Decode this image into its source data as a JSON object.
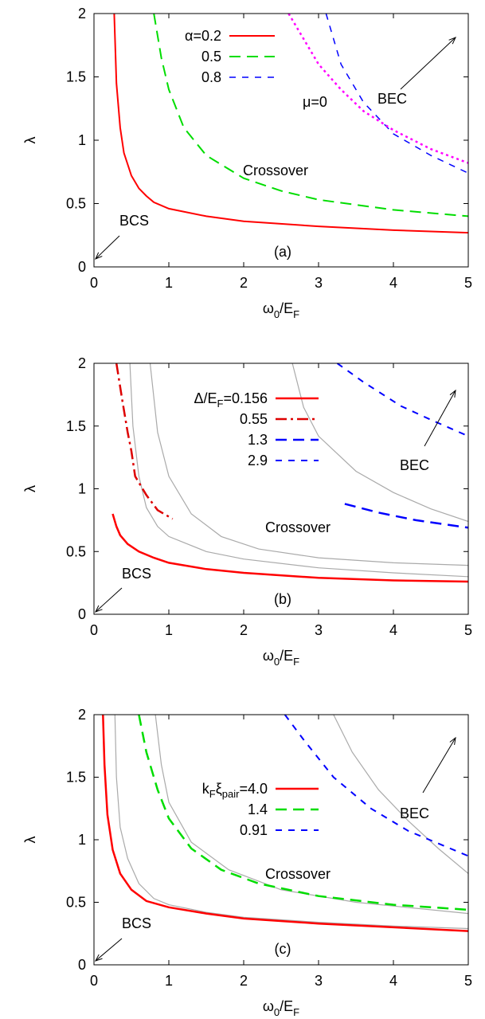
{
  "chart_data": [
    {
      "type": "line",
      "panel_label": "(a)",
      "xlabel": {
        "main": "ω",
        "sub1": "0",
        "mid": "/E",
        "sub2": "F"
      },
      "ylabel": "λ",
      "xlim": [
        0,
        5
      ],
      "ylim": [
        0,
        2
      ],
      "x_ticks": [
        "0",
        "1",
        "2",
        "3",
        "4",
        "5"
      ],
      "y_ticks": [
        "0",
        "0.5",
        "1",
        "1.5",
        "2"
      ],
      "annotations": {
        "bcs": "BCS",
        "crossover": "Crossover",
        "bec": "BEC",
        "mu0": "μ=0"
      },
      "series": [
        {
          "name": "α=0.2",
          "legend_parts": [
            {
              "t": "α=0.2"
            }
          ],
          "color": "#ff0000",
          "dash": "solid",
          "width": 2,
          "points": [
            [
              0.27,
              2.0
            ],
            [
              0.3,
              1.45
            ],
            [
              0.35,
              1.1
            ],
            [
              0.4,
              0.9
            ],
            [
              0.5,
              0.72
            ],
            [
              0.6,
              0.62
            ],
            [
              0.7,
              0.56
            ],
            [
              0.8,
              0.51
            ],
            [
              1.0,
              0.46
            ],
            [
              1.5,
              0.4
            ],
            [
              2.0,
              0.36
            ],
            [
              3.0,
              0.32
            ],
            [
              4.0,
              0.29
            ],
            [
              5.0,
              0.27
            ]
          ]
        },
        {
          "name": "0.5",
          "legend_parts": [
            {
              "t": "0.5"
            }
          ],
          "color": "#00dd00",
          "dash": "long",
          "width": 2,
          "points": [
            [
              0.8,
              2.0
            ],
            [
              0.9,
              1.65
            ],
            [
              1.0,
              1.4
            ],
            [
              1.2,
              1.1
            ],
            [
              1.5,
              0.88
            ],
            [
              2.0,
              0.7
            ],
            [
              2.5,
              0.6
            ],
            [
              3.0,
              0.53
            ],
            [
              4.0,
              0.45
            ],
            [
              5.0,
              0.4
            ]
          ]
        },
        {
          "name": "0.8",
          "legend_parts": [
            {
              "t": "0.8"
            }
          ],
          "color": "#0000ff",
          "dash": "short",
          "width": 1.5,
          "points": [
            [
              3.1,
              2.0
            ],
            [
              3.3,
              1.6
            ],
            [
              3.6,
              1.3
            ],
            [
              4.0,
              1.05
            ],
            [
              4.5,
              0.88
            ],
            [
              5.0,
              0.74
            ]
          ]
        }
      ],
      "extra_series": [
        {
          "name": "μ=0",
          "color": "#ff00ff",
          "dash": "dot",
          "width": 2.5,
          "points": [
            [
              2.6,
              2.0
            ],
            [
              2.8,
              1.8
            ],
            [
              3.0,
              1.6
            ],
            [
              3.3,
              1.4
            ],
            [
              3.6,
              1.23
            ],
            [
              4.0,
              1.08
            ],
            [
              4.5,
              0.93
            ],
            [
              5.0,
              0.82
            ]
          ]
        }
      ],
      "gray_curves": []
    },
    {
      "type": "line",
      "panel_label": "(b)",
      "xlabel": {
        "main": "ω",
        "sub1": "0",
        "mid": "/E",
        "sub2": "F"
      },
      "ylabel": "λ",
      "xlim": [
        0,
        5
      ],
      "ylim": [
        0,
        2
      ],
      "x_ticks": [
        "0",
        "1",
        "2",
        "3",
        "4",
        "5"
      ],
      "y_ticks": [
        "0",
        "0.5",
        "1",
        "1.5",
        "2"
      ],
      "annotations": {
        "bcs": "BCS",
        "crossover": "Crossover",
        "bec": "BEC",
        "mu0": ""
      },
      "series": [
        {
          "name": "Δ/E_F=0.156",
          "legend_parts": [
            {
              "t": "Δ/E"
            },
            {
              "t": "F",
              "sub": true
            },
            {
              "t": "=0.156"
            }
          ],
          "color": "#ff0000",
          "dash": "solid",
          "width": 2.5,
          "points": [
            [
              0.25,
              0.8
            ],
            [
              0.3,
              0.7
            ],
            [
              0.35,
              0.63
            ],
            [
              0.45,
              0.56
            ],
            [
              0.6,
              0.5
            ],
            [
              0.8,
              0.45
            ],
            [
              1.0,
              0.41
            ],
            [
              1.5,
              0.36
            ],
            [
              2.0,
              0.33
            ],
            [
              3.0,
              0.29
            ],
            [
              4.0,
              0.27
            ],
            [
              5.0,
              0.26
            ]
          ]
        },
        {
          "name": "0.55",
          "legend_parts": [
            {
              "t": "0.55"
            }
          ],
          "color": "#dd0000",
          "dash": "dashdot",
          "width": 2.5,
          "points": [
            [
              0.3,
              2.0
            ],
            [
              0.38,
              1.7
            ],
            [
              0.45,
              1.45
            ],
            [
              0.5,
              1.3
            ],
            [
              0.55,
              1.1
            ],
            [
              0.7,
              0.95
            ],
            [
              0.85,
              0.83
            ],
            [
              1.05,
              0.76
            ]
          ]
        },
        {
          "name": "1.3",
          "legend_parts": [
            {
              "t": "1.3"
            }
          ],
          "color": "#0000ff",
          "dash": "long",
          "width": 2.5,
          "points": [
            [
              3.35,
              0.88
            ],
            [
              3.8,
              0.81
            ],
            [
              4.3,
              0.75
            ],
            [
              5.0,
              0.69
            ]
          ]
        },
        {
          "name": "2.9",
          "legend_parts": [
            {
              "t": "2.9"
            }
          ],
          "color": "#0000ff",
          "dash": "short",
          "width": 2,
          "points": [
            [
              3.25,
              2.0
            ],
            [
              3.6,
              1.85
            ],
            [
              4.1,
              1.66
            ],
            [
              4.5,
              1.55
            ],
            [
              5.0,
              1.42
            ]
          ]
        }
      ],
      "extra_series": [],
      "gray_curves": [
        {
          "points": [
            [
              0.48,
              2.0
            ],
            [
              0.52,
              1.5
            ],
            [
              0.6,
              1.1
            ],
            [
              0.7,
              0.85
            ],
            [
              0.85,
              0.7
            ],
            [
              1.0,
              0.62
            ],
            [
              1.5,
              0.5
            ],
            [
              2.0,
              0.44
            ],
            [
              3.0,
              0.37
            ],
            [
              4.0,
              0.33
            ],
            [
              5.0,
              0.3
            ]
          ]
        },
        {
          "points": [
            [
              0.75,
              2.0
            ],
            [
              0.85,
              1.45
            ],
            [
              1.0,
              1.1
            ],
            [
              1.3,
              0.8
            ],
            [
              1.7,
              0.62
            ],
            [
              2.2,
              0.52
            ],
            [
              3.0,
              0.45
            ],
            [
              4.0,
              0.41
            ],
            [
              5.0,
              0.39
            ]
          ]
        },
        {
          "points": [
            [
              2.65,
              2.0
            ],
            [
              2.8,
              1.65
            ],
            [
              3.0,
              1.42
            ],
            [
              3.5,
              1.14
            ],
            [
              4.0,
              0.97
            ],
            [
              4.5,
              0.84
            ],
            [
              5.0,
              0.74
            ]
          ]
        }
      ]
    },
    {
      "type": "line",
      "panel_label": "(c)",
      "xlabel": {
        "main": "ω",
        "sub1": "0",
        "mid": "/E",
        "sub2": "F"
      },
      "ylabel": "λ",
      "xlim": [
        0,
        5
      ],
      "ylim": [
        0,
        2
      ],
      "x_ticks": [
        "0",
        "1",
        "2",
        "3",
        "4",
        "5"
      ],
      "y_ticks": [
        "0",
        "0.5",
        "1",
        "1.5",
        "2"
      ],
      "annotations": {
        "bcs": "BCS",
        "crossover": "Crossover",
        "bec": "BEC",
        "mu0": ""
      },
      "series": [
        {
          "name": "k_F ξ_pair=4.0",
          "legend_parts": [
            {
              "t": "k"
            },
            {
              "t": "F",
              "sub": true
            },
            {
              "t": "ξ"
            },
            {
              "t": "pair",
              "sub": true
            },
            {
              "t": "=4.0"
            }
          ],
          "color": "#ff0000",
          "dash": "solid",
          "width": 2.5,
          "points": [
            [
              0.12,
              2.0
            ],
            [
              0.14,
              1.6
            ],
            [
              0.18,
              1.2
            ],
            [
              0.25,
              0.92
            ],
            [
              0.35,
              0.73
            ],
            [
              0.5,
              0.6
            ],
            [
              0.7,
              0.51
            ],
            [
              1.0,
              0.46
            ],
            [
              1.5,
              0.41
            ],
            [
              2.0,
              0.37
            ],
            [
              3.0,
              0.33
            ],
            [
              4.0,
              0.3
            ],
            [
              5.0,
              0.27
            ]
          ]
        },
        {
          "name": "1.4",
          "legend_parts": [
            {
              "t": "1.4"
            }
          ],
          "color": "#00dd00",
          "dash": "long",
          "width": 2.5,
          "points": [
            [
              0.6,
              2.0
            ],
            [
              0.7,
              1.7
            ],
            [
              0.85,
              1.4
            ],
            [
              1.0,
              1.17
            ],
            [
              1.3,
              0.93
            ],
            [
              1.7,
              0.76
            ],
            [
              2.2,
              0.65
            ],
            [
              3.0,
              0.55
            ],
            [
              4.0,
              0.48
            ],
            [
              5.0,
              0.44
            ]
          ]
        },
        {
          "name": "0.91",
          "legend_parts": [
            {
              "t": "0.91"
            }
          ],
          "color": "#0000ff",
          "dash": "short",
          "width": 2,
          "points": [
            [
              2.55,
              2.0
            ],
            [
              2.8,
              1.8
            ],
            [
              3.2,
              1.5
            ],
            [
              3.7,
              1.25
            ],
            [
              4.2,
              1.07
            ],
            [
              4.6,
              0.97
            ],
            [
              5.0,
              0.87
            ]
          ]
        }
      ],
      "extra_series": [],
      "gray_curves": [
        {
          "points": [
            [
              0.28,
              2.0
            ],
            [
              0.3,
              1.5
            ],
            [
              0.35,
              1.1
            ],
            [
              0.45,
              0.85
            ],
            [
              0.6,
              0.65
            ],
            [
              0.8,
              0.53
            ],
            [
              1.0,
              0.48
            ],
            [
              1.5,
              0.42
            ],
            [
              2.0,
              0.38
            ],
            [
              3.0,
              0.34
            ],
            [
              4.0,
              0.31
            ],
            [
              5.0,
              0.29
            ]
          ]
        },
        {
          "points": [
            [
              0.82,
              2.0
            ],
            [
              0.9,
              1.6
            ],
            [
              1.0,
              1.3
            ],
            [
              1.3,
              0.98
            ],
            [
              1.8,
              0.76
            ],
            [
              2.5,
              0.6
            ],
            [
              3.5,
              0.5
            ],
            [
              5.0,
              0.41
            ]
          ]
        },
        {
          "points": [
            [
              3.2,
              2.0
            ],
            [
              3.45,
              1.7
            ],
            [
              3.8,
              1.4
            ],
            [
              4.2,
              1.15
            ],
            [
              4.6,
              0.93
            ],
            [
              5.0,
              0.73
            ]
          ]
        }
      ]
    }
  ]
}
